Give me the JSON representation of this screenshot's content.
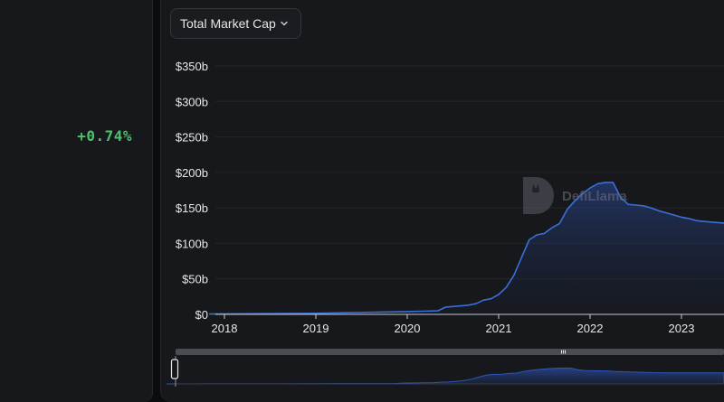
{
  "summary": {
    "change_pct": "+0.74%"
  },
  "metric_selector": {
    "label": "Total Market Cap",
    "icon": "chevron-down-icon"
  },
  "watermark": {
    "text": "DefiLlama"
  },
  "colors": {
    "line": "#3a6fd8",
    "positive": "#4cc26a",
    "panel": "#17181b",
    "text": "#e6e7ea"
  },
  "chart_data": {
    "type": "area",
    "title": "",
    "xlabel": "",
    "ylabel": "",
    "y_tick_labels": [
      "$0",
      "$50b",
      "$100b",
      "$150b",
      "$200b",
      "$250b",
      "$300b",
      "$350b"
    ],
    "x_tick_labels": [
      "2018",
      "2019",
      "2020",
      "2021",
      "2022",
      "2023"
    ],
    "ylim": [
      0,
      350
    ],
    "y_unit": "billion USD",
    "grid": true,
    "series": [
      {
        "values": [
          [
            "2017-11",
            0.5
          ],
          [
            "2018-06",
            1
          ],
          [
            "2019-01",
            1.5
          ],
          [
            "2019-06",
            2.5
          ],
          [
            "2020-01",
            4
          ],
          [
            "2020-03",
            4.5
          ],
          [
            "2020-05",
            5
          ],
          [
            "2020-06",
            10
          ],
          [
            "2020-09",
            13
          ],
          [
            "2020-10",
            15
          ],
          [
            "2020-11",
            20
          ],
          [
            "2020-12",
            22
          ],
          [
            "2021-01",
            28
          ],
          [
            "2021-02",
            38
          ],
          [
            "2021-03",
            55
          ],
          [
            "2021-04",
            80
          ],
          [
            "2021-05",
            105
          ],
          [
            "2021-06",
            112
          ],
          [
            "2021-07",
            114
          ],
          [
            "2021-08",
            122
          ],
          [
            "2021-09",
            128
          ],
          [
            "2021-10",
            148
          ],
          [
            "2021-11",
            160
          ],
          [
            "2021-12",
            170
          ],
          [
            "2022-01",
            178
          ],
          [
            "2022-02",
            184
          ],
          [
            "2022-03",
            186
          ],
          [
            "2022-04",
            186
          ],
          [
            "2022-05",
            165
          ],
          [
            "2022-06",
            155
          ],
          [
            "2022-07",
            154
          ],
          [
            "2022-08",
            153
          ],
          [
            "2022-09",
            150
          ],
          [
            "2022-10",
            146
          ],
          [
            "2022-11",
            143
          ],
          [
            "2022-12",
            140
          ],
          [
            "2023-01",
            137
          ],
          [
            "2023-02",
            135
          ],
          [
            "2023-03",
            132
          ],
          [
            "2023-05",
            130
          ]
        ]
      }
    ]
  }
}
